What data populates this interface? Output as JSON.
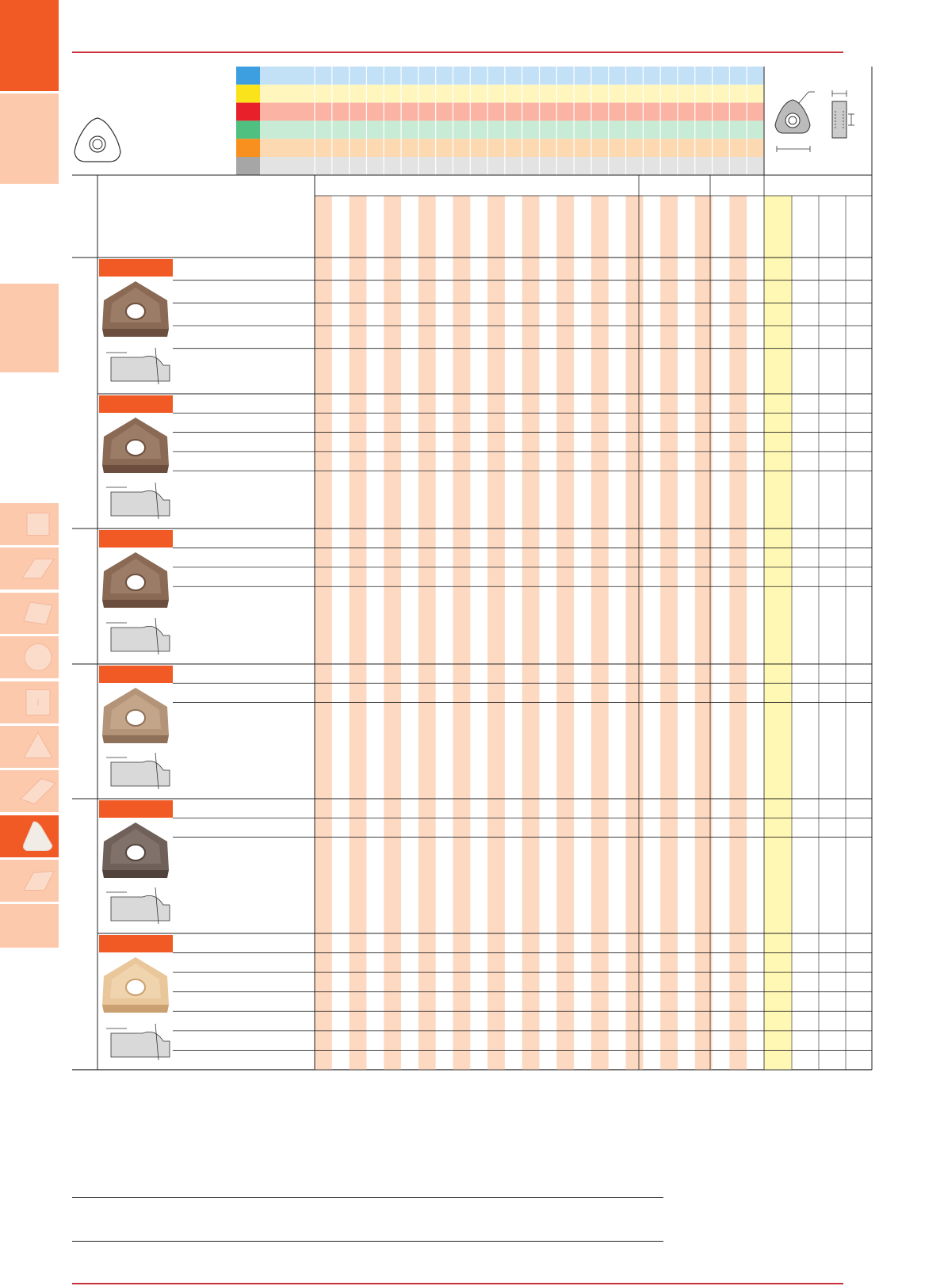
{
  "colors": {
    "accent": "#f15a24",
    "tab_light": "#fcc9ad",
    "header_rule": "#c8313a",
    "stripe": "#fdd9c2",
    "highlight_column": "#fff8b4"
  },
  "material_groups": [
    {
      "key": "P",
      "color": "#3e9fe0",
      "row_color": "#c2e1f7"
    },
    {
      "key": "M",
      "color": "#fbe31c",
      "row_color": "#fff6be"
    },
    {
      "key": "K",
      "color": "#e8202a",
      "row_color": "#fbb3a4"
    },
    {
      "key": "N",
      "color": "#4fc07f",
      "row_color": "#c8ebd5"
    },
    {
      "key": "S",
      "color": "#f7901e",
      "row_color": "#fdd9b1"
    },
    {
      "key": "H",
      "color": "#a6a6a6",
      "row_color": "#e3e3e3"
    }
  ],
  "side_tabs": [
    {
      "icon": "accent-block-icon"
    },
    {
      "icon": "light-block-icon"
    },
    {
      "icon": "light-block-icon"
    },
    {
      "icon": "square-insert-icon"
    },
    {
      "icon": "rhombus-35-insert-icon"
    },
    {
      "icon": "rhombus-80-insert-icon"
    },
    {
      "icon": "round-insert-icon"
    },
    {
      "icon": "square-insert-icon"
    },
    {
      "icon": "triangle-insert-icon"
    },
    {
      "icon": "rhombus-55-insert-icon"
    },
    {
      "icon": "trigon-insert-icon"
    },
    {
      "icon": "parallelogram-insert-icon"
    },
    {
      "icon": "light-block-icon"
    }
  ],
  "sections": [
    {
      "rows": [
        1,
        1,
        1,
        1,
        2
      ],
      "insert_tone": "dark"
    },
    {
      "rows": [
        1,
        1,
        1,
        1,
        3
      ],
      "insert_tone": "dark"
    },
    {
      "rows": [
        1,
        1,
        1,
        4
      ],
      "insert_tone": "dark"
    },
    {
      "rows": [
        1,
        1,
        5
      ],
      "insert_tone": "medium"
    },
    {
      "rows": [
        1,
        1,
        5
      ],
      "insert_tone": "dark-grey"
    },
    {
      "rows": [
        1,
        1,
        1,
        1,
        1,
        1,
        1
      ],
      "insert_tone": "gold"
    }
  ]
}
